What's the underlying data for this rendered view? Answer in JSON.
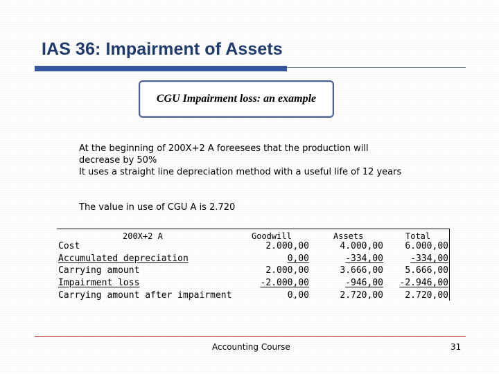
{
  "slide": {
    "title": "IAS 36: Impairment of Assets",
    "box_heading": "CGU Impairment loss: an example",
    "paragraphs": [
      "At the beginning of 200X+2 A foreesees that the production will decrease by 50%",
      "It uses a straight line depreciation method with a useful life of 12 years",
      "The value in use of CGU A is 2.720"
    ],
    "accent_color": "#3656a0",
    "footer_line_color": "#c13b2e"
  },
  "table": {
    "headers": {
      "label": "200X+2 A",
      "goodwill": "Goodwill",
      "assets": "Assets",
      "total": "Total"
    },
    "rows": [
      {
        "label": "Cost",
        "goodwill": "2.000,00",
        "assets": "4.000,00",
        "total": "6.000,00"
      },
      {
        "label": "Accumulated depreciation",
        "goodwill": "0,00",
        "assets": "-334,00",
        "total": "-334,00"
      },
      {
        "label": "Carrying amount",
        "goodwill": "2.000,00",
        "assets": "3.666,00",
        "total": "5.666,00"
      },
      {
        "label": "Impairment loss",
        "goodwill": "-2.000,00",
        "assets": "-946,00",
        "total": "-2.946,00"
      },
      {
        "label": "Carrying amount after impairment",
        "goodwill": "0,00",
        "assets": "2.720,00",
        "total": "2.720,00"
      }
    ]
  },
  "footer": {
    "course": "Accounting Course",
    "page_number": "31"
  }
}
